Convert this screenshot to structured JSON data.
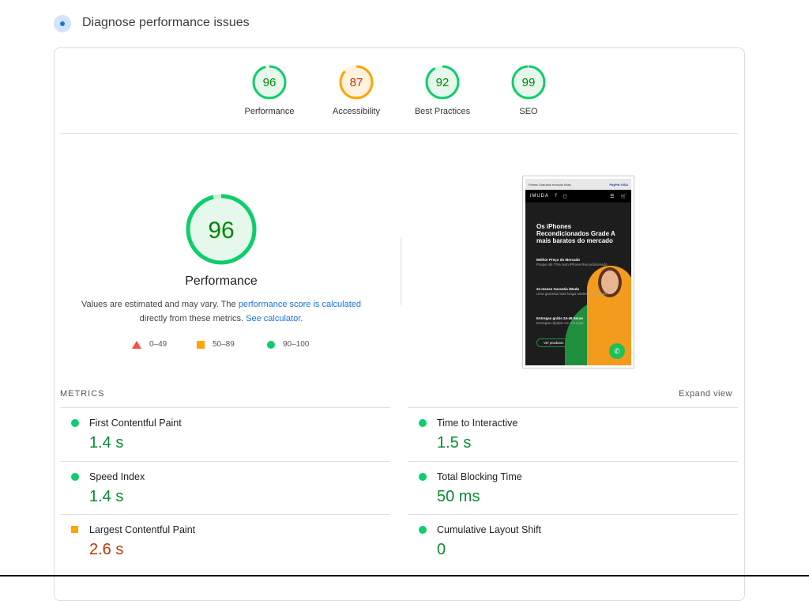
{
  "header": {
    "title": "Diagnose performance issues",
    "icon": "gauge-icon"
  },
  "categories": [
    {
      "label": "Performance",
      "score": 96,
      "color": "#0cce6b",
      "text_color": "#008800"
    },
    {
      "label": "Accessibility",
      "score": 87,
      "color": "#ffa400",
      "text_color": "#c33300"
    },
    {
      "label": "Best Practices",
      "score": 92,
      "color": "#0cce6b",
      "text_color": "#008800"
    },
    {
      "label": "SEO",
      "score": 99,
      "color": "#0cce6b",
      "text_color": "#008800"
    }
  ],
  "summary": {
    "score": 96,
    "label": "Performance",
    "desc_1": "Values are estimated and may vary. The ",
    "link_1": "performance score is calculated",
    "desc_2": "directly from these metrics. ",
    "link_2": "See calculator."
  },
  "legend": [
    {
      "range": "0–49",
      "shape": "triangle",
      "color": "#ff4e42"
    },
    {
      "range": "50–89",
      "shape": "square",
      "color": "#ffa400"
    },
    {
      "range": "90–100",
      "shape": "circle",
      "color": "#0cce6b"
    }
  ],
  "screenshot": {
    "topbar": "Portes Gratuitos excepto Ilhas",
    "payments": "PayPal VISA",
    "brand": "iMUDA",
    "hero": "Os iPhones Recondicionados Grade A mais baratos do mercado",
    "features": [
      {
        "title": "Melhor Preço do Mercado",
        "sub": "Poupe até 70% num iPhone Recondicionado"
      },
      {
        "title": "24 meses Garantia iMuda",
        "sub": "Uma garantia mais longa totalmente gratuita"
      },
      {
        "title": "Entregas grátis 24-48 horas",
        "sub": "Entregas rápidas em Portugal"
      }
    ],
    "cta": "Ver produtos"
  },
  "metrics": {
    "heading": "METRICS",
    "expand": "Expand view",
    "left": [
      {
        "title": "First Contentful Paint",
        "value": "1.4 s",
        "rating": "good"
      },
      {
        "title": "Speed Index",
        "value": "1.4 s",
        "rating": "good"
      },
      {
        "title": "Largest Contentful Paint",
        "value": "2.6 s",
        "rating": "average"
      }
    ],
    "right": [
      {
        "title": "Time to Interactive",
        "value": "1.5 s",
        "rating": "good"
      },
      {
        "title": "Total Blocking Time",
        "value": "50 ms",
        "rating": "good"
      },
      {
        "title": "Cumulative Layout Shift",
        "value": "0",
        "rating": "good"
      }
    ]
  }
}
